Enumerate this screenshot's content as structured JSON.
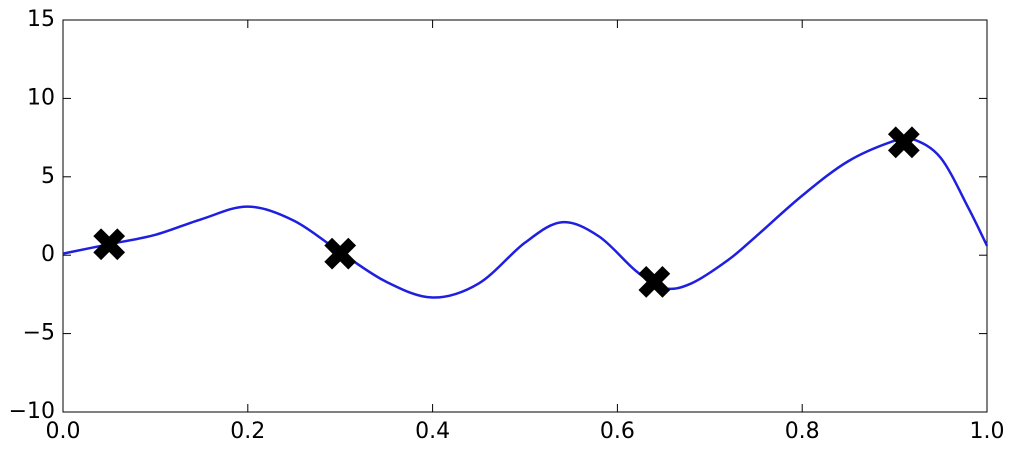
{
  "chart_data": {
    "type": "line",
    "x": [
      0,
      0.05,
      0.1,
      0.15,
      0.2,
      0.25,
      0.3,
      0.35,
      0.4,
      0.45,
      0.5,
      0.54,
      0.58,
      0.62,
      0.65,
      0.68,
      0.72,
      0.75,
      0.8,
      0.85,
      0.9,
      0.92,
      0.95,
      0.98,
      1.0
    ],
    "series": [
      {
        "color": "#1f1fe0",
        "values": [
          0.1,
          0.7,
          1.3,
          2.3,
          3.1,
          2.2,
          0.2,
          -1.7,
          -2.7,
          -1.8,
          0.8,
          2.1,
          1.2,
          -1.0,
          -2.1,
          -1.8,
          -0.3,
          1.2,
          3.8,
          6.0,
          7.3,
          7.4,
          6.2,
          3.0,
          0.6
        ]
      }
    ],
    "points": {
      "x": [
        0.05,
        0.3,
        0.64,
        0.91
      ],
      "y": [
        0.7,
        0.1,
        -1.7,
        7.2
      ],
      "color": "#000000"
    },
    "xlim": [
      0,
      1
    ],
    "ylim": [
      -10,
      15
    ],
    "xticks": [
      {
        "value": 0,
        "label": "0.0"
      },
      0.2,
      0.4,
      0.6,
      0.8,
      {
        "value": 1,
        "label": "1.0"
      }
    ],
    "yticks": [
      {
        "value": -10,
        "label": "−10"
      },
      {
        "value": -5,
        "label": "−5"
      },
      0,
      5,
      10,
      15
    ]
  }
}
